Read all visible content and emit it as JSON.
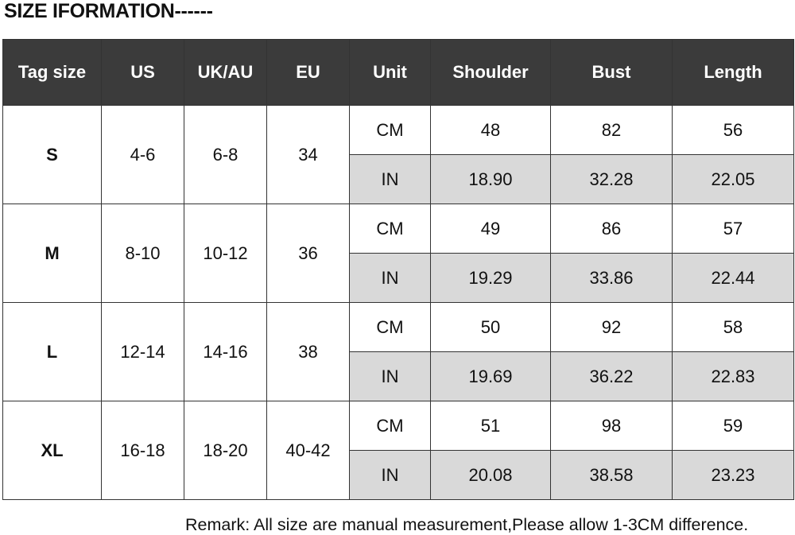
{
  "title": "SIZE IFORMATION------",
  "table": {
    "headers": [
      "Tag size",
      "US",
      "UK/AU",
      "EU",
      "Unit",
      "Shoulder",
      "Bust",
      "Length"
    ],
    "rows": [
      {
        "tag": "S",
        "us": "4-6",
        "ukau": "6-8",
        "eu": "34",
        "cm": {
          "unit": "CM",
          "shoulder": "48",
          "bust": "82",
          "length": "56"
        },
        "in": {
          "unit": "IN",
          "shoulder": "18.90",
          "bust": "32.28",
          "length": "22.05"
        }
      },
      {
        "tag": "M",
        "us": "8-10",
        "ukau": "10-12",
        "eu": "36",
        "cm": {
          "unit": "CM",
          "shoulder": "49",
          "bust": "86",
          "length": "57"
        },
        "in": {
          "unit": "IN",
          "shoulder": "19.29",
          "bust": "33.86",
          "length": "22.44"
        }
      },
      {
        "tag": "L",
        "us": "12-14",
        "ukau": "14-16",
        "eu": "38",
        "cm": {
          "unit": "CM",
          "shoulder": "50",
          "bust": "92",
          "length": "58"
        },
        "in": {
          "unit": "IN",
          "shoulder": "19.69",
          "bust": "36.22",
          "length": "22.83"
        }
      },
      {
        "tag": "XL",
        "us": "16-18",
        "ukau": "18-20",
        "eu": "40-42",
        "cm": {
          "unit": "CM",
          "shoulder": "51",
          "bust": "98",
          "length": "59"
        },
        "in": {
          "unit": "IN",
          "shoulder": "20.08",
          "bust": "38.58",
          "length": "23.23"
        }
      }
    ]
  },
  "remark": "Remark: All size are manual measurement,Please allow 1-3CM difference.",
  "colors": {
    "header_bg": "#3b3b3b",
    "inch_row_bg": "#d9d9d9"
  }
}
